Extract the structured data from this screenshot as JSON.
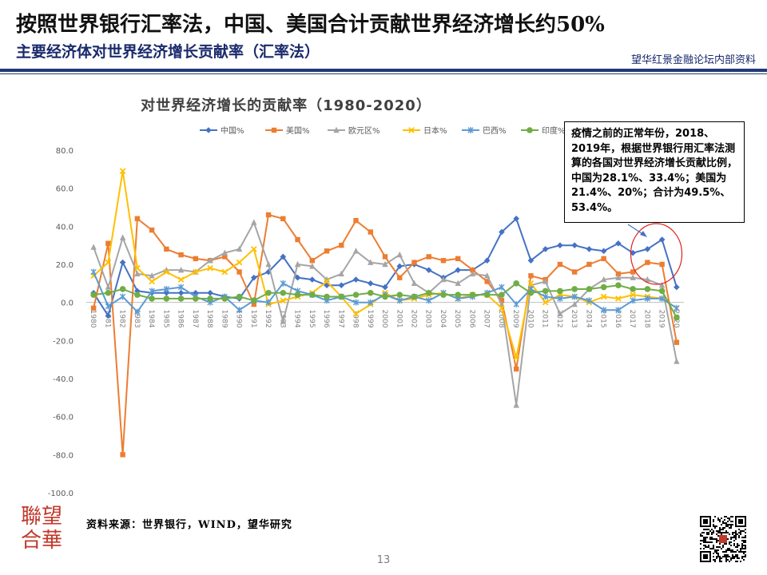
{
  "header": {
    "title": "按照世界银行汇率法，中国、美国合计贡献世界经济增长约50%",
    "subtitle": "主要经济体对世界经济增长贡献率（汇率法）",
    "brand": "望华红景金融论坛内部资料"
  },
  "callout": {
    "text": "疫情之前的正常年份，2018、2019年，根据世界银行用汇率法测算的各国对世界经济增长贡献比例，中国为28.1%、33.4%；美国为21.4%、20%；合计为49.5%、53.4%。"
  },
  "footer": {
    "source": "资料来源：世界银行，WIND，望华研究",
    "page_number": "13",
    "logo_text": "聯望\n合華"
  },
  "chart_data": {
    "type": "line",
    "title": "对世界经济增长的贡献率（1980-2020）",
    "xlabel": "",
    "ylabel": "",
    "ylim": [
      -100,
      80
    ],
    "yticks": [
      "80.0",
      "60.0",
      "40.0",
      "20.0",
      "0.0",
      "-20.0",
      "-40.0",
      "-60.0",
      "-80.0",
      "-100.0"
    ],
    "x": [
      1980,
      1981,
      1982,
      1983,
      1984,
      1985,
      1986,
      1987,
      1988,
      1989,
      1990,
      1991,
      1992,
      1993,
      1994,
      1995,
      1996,
      1997,
      1998,
      1999,
      2000,
      2001,
      2002,
      2003,
      2004,
      2005,
      2006,
      2007,
      2008,
      2009,
      2010,
      2011,
      2012,
      2013,
      2014,
      2015,
      2016,
      2017,
      2018,
      2019,
      2020
    ],
    "legend_position": "top",
    "grid": false,
    "series": [
      {
        "name": "中国%",
        "color": "#4472c4",
        "marker": "diamond",
        "values": [
          5,
          -7,
          21,
          6,
          5,
          5,
          5,
          5,
          5,
          3,
          2,
          13,
          16,
          24,
          13,
          12,
          9,
          9,
          12,
          10,
          8,
          19,
          20,
          17,
          13,
          17,
          17,
          22,
          37,
          44,
          22,
          28,
          30,
          30,
          28,
          27,
          31,
          26,
          28,
          33,
          8
        ]
      },
      {
        "name": "美国%",
        "color": "#ed7d31",
        "marker": "square",
        "values": [
          -3,
          31,
          -80,
          44,
          38,
          28,
          25,
          23,
          22,
          24,
          16,
          -1,
          46,
          44,
          33,
          22,
          27,
          30,
          43,
          37,
          24,
          13,
          21,
          24,
          22,
          23,
          17,
          11,
          1,
          -35,
          14,
          12,
          20,
          16,
          20,
          23,
          15,
          16,
          21,
          20,
          -21
        ]
      },
      {
        "name": "欧元区%",
        "color": "#a5a5a5",
        "marker": "triangle",
        "values": [
          29,
          8,
          34,
          15,
          14,
          17,
          17,
          16,
          22,
          26,
          28,
          42,
          20,
          -10,
          20,
          19,
          12,
          15,
          27,
          21,
          20,
          25,
          10,
          5,
          12,
          10,
          15,
          14,
          -1,
          -54,
          9,
          11,
          -6,
          -1,
          7,
          12,
          13,
          13,
          12,
          9,
          -31
        ]
      },
      {
        "name": "日本%",
        "color": "#ffc000",
        "marker": "x",
        "values": [
          14,
          21,
          69,
          18,
          11,
          16,
          12,
          16,
          18,
          16,
          21,
          28,
          -1,
          1,
          3,
          5,
          11,
          3,
          -6,
          -1,
          5,
          1,
          2,
          4,
          5,
          2,
          4,
          4,
          -3,
          -29,
          10,
          0,
          4,
          3,
          0,
          3,
          2,
          4,
          3,
          2,
          -3
        ]
      },
      {
        "name": "巴西%",
        "color": "#5b9bd5",
        "marker": "star",
        "values": [
          16,
          -2,
          3,
          -5,
          6,
          7,
          8,
          3,
          0,
          3,
          -4,
          1,
          0,
          10,
          6,
          4,
          1,
          3,
          0,
          0,
          4,
          1,
          3,
          1,
          5,
          2,
          3,
          5,
          8,
          -1,
          7,
          3,
          2,
          3,
          1,
          -4,
          -4,
          1,
          2,
          2,
          -3
        ]
      },
      {
        "name": "印度%",
        "color": "#70ad47",
        "marker": "circle",
        "values": [
          4,
          5,
          7,
          4,
          2,
          2,
          2,
          2,
          2,
          2,
          3,
          1,
          5,
          5,
          4,
          4,
          3,
          3,
          4,
          5,
          3,
          4,
          3,
          5,
          4,
          4,
          4,
          4,
          4,
          10,
          5,
          6,
          6,
          7,
          7,
          8,
          9,
          7,
          7,
          6,
          -8
        ]
      }
    ]
  }
}
